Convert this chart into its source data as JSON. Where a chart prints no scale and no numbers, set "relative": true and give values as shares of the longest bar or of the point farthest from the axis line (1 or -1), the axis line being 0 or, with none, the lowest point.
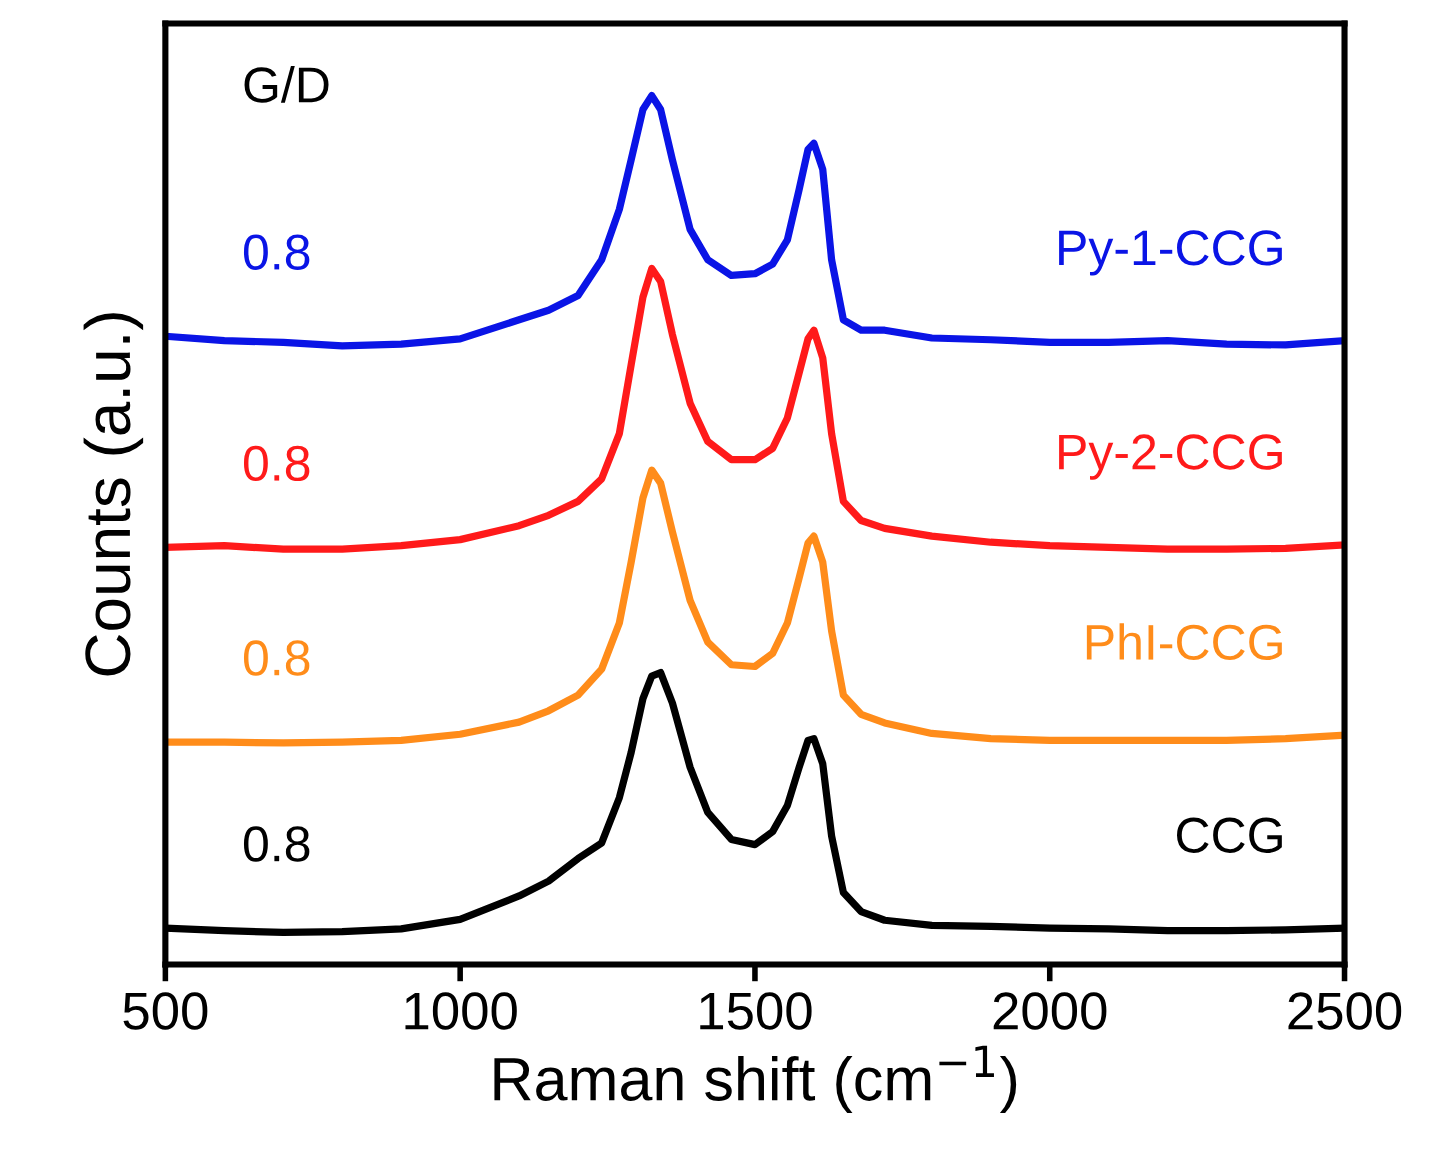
{
  "chart_data": {
    "type": "line",
    "relative": true,
    "xlabel": "Raman shift (cm$^{−1}$)",
    "ylabel": "Counts (a.u.)",
    "xlim": [
      500,
      2500
    ],
    "xticks": [
      500,
      1000,
      1500,
      2000,
      2500
    ],
    "tick_labels": "x",
    "grid": false,
    "legend": false,
    "marker": "none",
    "line_style": "solid",
    "annotations": [
      "G/D",
      "0.8",
      "0.8",
      "0.8",
      "0.8"
    ],
    "x": [
      500,
      600,
      700,
      800,
      900,
      1000,
      1100,
      1150,
      1200,
      1240,
      1270,
      1290,
      1310,
      1325,
      1340,
      1360,
      1390,
      1420,
      1460,
      1500,
      1530,
      1555,
      1575,
      1590,
      1600,
      1615,
      1630,
      1650,
      1680,
      1720,
      1800,
      1900,
      2000,
      2100,
      2200,
      2300,
      2400,
      2500
    ],
    "series": [
      {
        "name": "Py-1-CCG",
        "color": "#0a14e6",
        "values": [
          0.723,
          0.718,
          0.716,
          0.712,
          0.714,
          0.72,
          0.742,
          0.753,
          0.77,
          0.811,
          0.869,
          0.926,
          0.984,
          1.0,
          0.984,
          0.926,
          0.846,
          0.811,
          0.793,
          0.795,
          0.806,
          0.834,
          0.892,
          0.938,
          0.945,
          0.915,
          0.811,
          0.742,
          0.73,
          0.73,
          0.721,
          0.719,
          0.716,
          0.716,
          0.718,
          0.714,
          0.713,
          0.718
        ]
      },
      {
        "name": "Py-2-CCG",
        "color": "#ff1a1a",
        "values": [
          0.48,
          0.482,
          0.478,
          0.478,
          0.482,
          0.489,
          0.505,
          0.517,
          0.533,
          0.559,
          0.611,
          0.69,
          0.768,
          0.801,
          0.786,
          0.725,
          0.646,
          0.602,
          0.581,
          0.581,
          0.594,
          0.629,
          0.681,
          0.72,
          0.73,
          0.698,
          0.611,
          0.533,
          0.511,
          0.502,
          0.493,
          0.486,
          0.482,
          0.48,
          0.478,
          0.478,
          0.479,
          0.483
        ]
      },
      {
        "name": "PhI-CCG",
        "color": "#ff8c1a",
        "values": [
          0.256,
          0.256,
          0.255,
          0.256,
          0.258,
          0.265,
          0.279,
          0.292,
          0.31,
          0.34,
          0.393,
          0.463,
          0.537,
          0.569,
          0.554,
          0.498,
          0.419,
          0.371,
          0.345,
          0.343,
          0.358,
          0.393,
          0.445,
          0.485,
          0.493,
          0.463,
          0.384,
          0.31,
          0.288,
          0.278,
          0.266,
          0.26,
          0.258,
          0.258,
          0.258,
          0.258,
          0.26,
          0.264
        ]
      },
      {
        "name": "CCG",
        "color": "#000000",
        "values": [
          0.042,
          0.039,
          0.037,
          0.038,
          0.041,
          0.052,
          0.079,
          0.096,
          0.122,
          0.14,
          0.192,
          0.244,
          0.306,
          0.332,
          0.336,
          0.301,
          0.227,
          0.175,
          0.144,
          0.138,
          0.153,
          0.183,
          0.227,
          0.258,
          0.26,
          0.231,
          0.148,
          0.083,
          0.061,
          0.051,
          0.045,
          0.044,
          0.042,
          0.041,
          0.039,
          0.039,
          0.04,
          0.042
        ]
      }
    ]
  }
}
